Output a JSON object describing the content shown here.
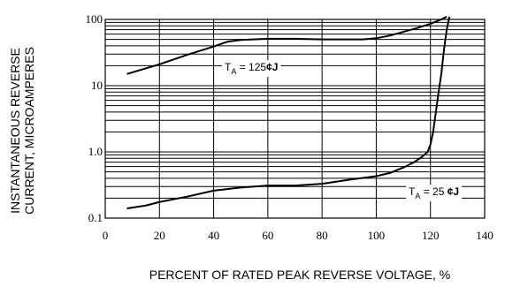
{
  "chart_data": {
    "type": "line",
    "title": "",
    "xlabel": "PERCENT OF RATED PEAK REVERSE VOLTAGE, %",
    "ylabel_lines": [
      "INSTANTANEOUS REVERSE",
      "CURRENT, MICROAMPERES"
    ],
    "xlim": [
      0,
      140
    ],
    "ylim": [
      0.1,
      100
    ],
    "yscale": "log",
    "grid": true,
    "x_ticks": [
      0,
      20,
      40,
      60,
      80,
      100,
      120,
      140
    ],
    "x_tick_labels": [
      "0",
      "20",
      "40",
      "60",
      "80",
      "100",
      "120",
      "140"
    ],
    "y_ticks": [
      0.1,
      1,
      10,
      100
    ],
    "y_tick_labels": [
      "0.1",
      "1.0",
      "10",
      "100"
    ],
    "series": [
      {
        "x": [
          8,
          20,
          30,
          40,
          45,
          50,
          60,
          70,
          80,
          90,
          95,
          100,
          105,
          110,
          115,
          120,
          124,
          126
        ],
        "y": [
          15,
          21,
          29,
          39,
          46,
          49,
          51,
          51,
          50,
          50,
          50,
          52,
          57,
          65,
          74,
          86,
          100,
          110
        ]
      },
      {
        "x": [
          8,
          15,
          20,
          30,
          40,
          50,
          60,
          70,
          80,
          90,
          100,
          105,
          110,
          114,
          117,
          119,
          120,
          121,
          122,
          123,
          124,
          125,
          126,
          127
        ],
        "y": [
          0.14,
          0.155,
          0.175,
          0.21,
          0.26,
          0.29,
          0.31,
          0.31,
          0.33,
          0.38,
          0.43,
          0.48,
          0.58,
          0.7,
          0.85,
          1.0,
          1.3,
          2.0,
          4.0,
          8.0,
          15,
          35,
          70,
          110
        ]
      }
    ],
    "annotations": [
      {
        "main": "T",
        "sub": "A",
        "value": " = 125",
        "unit": "¢J",
        "series": 0
      },
      {
        "main": "T",
        "sub": "A",
        "value": " = 25 ",
        "unit": "¢J",
        "series": 1
      }
    ]
  }
}
